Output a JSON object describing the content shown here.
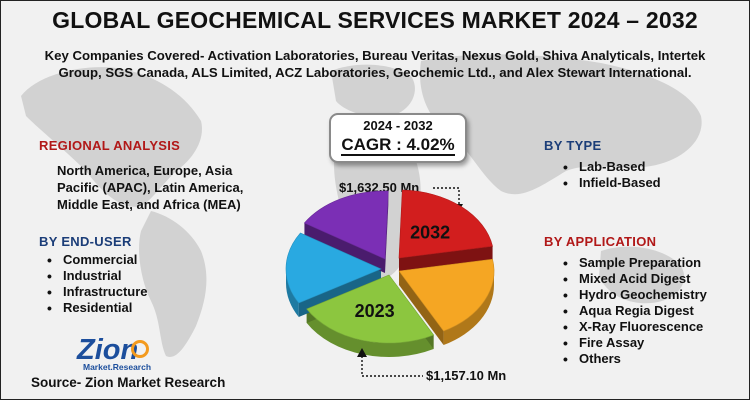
{
  "title": "GLOBAL GEOCHEMICAL SERVICES MARKET 2024 – 2032",
  "subtitle": "Key Companies Covered- Activation Laboratories, Bureau Veritas, Nexus Gold, Shiva Analyticals, Intertek Group, SGS Canada, ALS Limited, ACZ Laboratories, Geochemic Ltd., and Alex Stewart International.",
  "regional": {
    "heading": "REGIONAL ANALYSIS",
    "text": "North America, Europe, Asia Pacific (APAC), Latin America, Middle East, and Africa (MEA)"
  },
  "end_user": {
    "heading": "BY END-USER",
    "items": [
      "Commercial",
      "Industrial",
      "Infrastructure",
      "Residential"
    ]
  },
  "by_type": {
    "heading": "BY TYPE",
    "items": [
      "Lab-Based",
      "Infield-Based"
    ]
  },
  "by_application": {
    "heading": "BY APPLICATION",
    "items": [
      "Sample Preparation",
      "Mixed Acid Digest",
      "Hydro Geochemistry",
      "Aqua Regia Digest",
      "X-Ray Fluorescence",
      "Fire Assay",
      "Others"
    ]
  },
  "cagr": {
    "period": "2024 - 2032",
    "value": "CAGR : 4.02%"
  },
  "chart_data": {
    "type": "pie",
    "series": [
      {
        "label": "2032",
        "value": 1632.5,
        "value_label": "$1,632.50 Mn"
      },
      {
        "label": "2023",
        "value": 1157.1,
        "value_label": "$1,157.10 Mn"
      }
    ],
    "colors": {
      "red": "#d21e1e",
      "orange": "#f5a623",
      "green": "#8cc63f",
      "blue": "#29a9e1",
      "purple": "#7b2fb5"
    }
  },
  "logo": {
    "name": "Zion",
    "sub": "Market.Research"
  },
  "source": "Source- Zion Market Research"
}
